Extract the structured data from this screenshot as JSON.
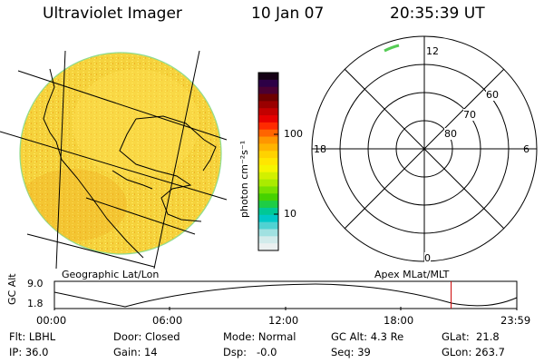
{
  "header": {
    "instrument": "Ultraviolet Imager",
    "date": "10 Jan 07",
    "time": "20:35:39 UT"
  },
  "colorbar": {
    "unit_label": "photon cm⁻²s⁻¹",
    "ticks": [
      "100",
      "10"
    ],
    "colors": [
      "#140014",
      "#2d0046",
      "#4b0032",
      "#6e0000",
      "#9a0000",
      "#c30000",
      "#e60000",
      "#ff2a00",
      "#ff6400",
      "#ff9600",
      "#ffb400",
      "#ffd200",
      "#ffe600",
      "#f5f500",
      "#d2f000",
      "#aaeb00",
      "#78e100",
      "#46d200",
      "#1ecd46",
      "#00c896",
      "#00c8c8",
      "#50d2d2",
      "#a0e1e1",
      "#d2ebeb",
      "#ebf0f0"
    ]
  },
  "left_panel": {
    "caption": "Geographic Lat/Lon",
    "disk_fill": "#f5d23c"
  },
  "right_panel": {
    "caption": "Apex MLat/MLT",
    "mlt_labels": {
      "top": "12",
      "left": "18",
      "right": "6",
      "bottom": "0"
    },
    "mlat_labels": [
      "60",
      "70",
      "80"
    ]
  },
  "altitude_plot": {
    "ylabel": "GC Alt",
    "ymax_label": "9.0",
    "ymin_label": "1.8",
    "x_ticks": [
      "00:00",
      "06:00",
      "12:00",
      "18:00",
      "23:59"
    ],
    "marker_color": "#cc0000",
    "current_time_fraction": 0.858
  },
  "info": {
    "row1": {
      "filter": "Flt: LBHL",
      "door": "Door: Closed",
      "mode": "Mode: Normal",
      "gc_alt": "GC Alt: 4.3 Re",
      "glat": "GLat:  21.8"
    },
    "row2": {
      "ip": "IP: 36.0",
      "gain": "Gain: 14",
      "dsp": "Dsp:   -0.0",
      "seq": "Seq: 39",
      "glon": "GLon: 263.7"
    }
  }
}
